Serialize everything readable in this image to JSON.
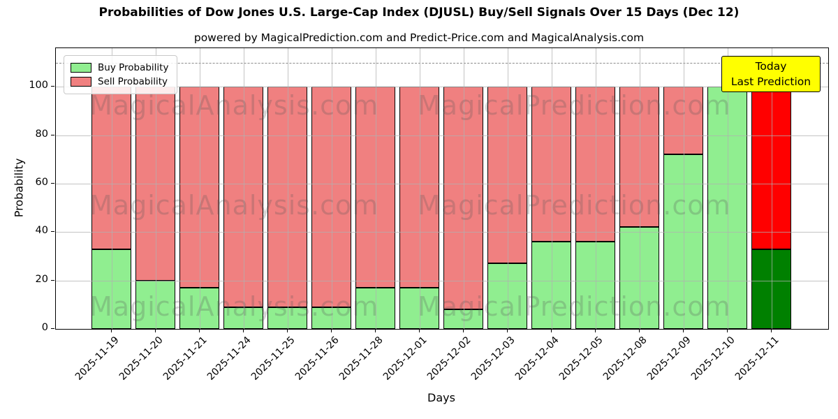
{
  "title": "Probabilities of Dow Jones U.S. Large-Cap Index (DJUSL) Buy/Sell Signals Over 15 Days (Dec 12)",
  "subtitle": "powered by MagicalPrediction.com and Predict-Price.com and MagicalAnalysis.com",
  "legend": {
    "items": [
      {
        "label": "Buy Probability",
        "color": "#90EE90"
      },
      {
        "label": "Sell Probability",
        "color": "#F08080"
      }
    ]
  },
  "annotation": {
    "line1": "Today",
    "line2": "Last Prediction",
    "bg_color": "#FFFF00"
  },
  "watermarks": {
    "left_text": "MagicalAnalysis.com",
    "right_text": "MagicalPrediction.com"
  },
  "colors": {
    "buy": "#90EE90",
    "sell": "#F08080",
    "buy_today": "#008000",
    "sell_today": "#FF0000",
    "grid": "#b0b0b0",
    "annotation_bg": "#FFFF00"
  },
  "chart_data": {
    "type": "bar",
    "stacked": true,
    "title": "Probabilities of Dow Jones U.S. Large-Cap Index (DJUSL) Buy/Sell Signals Over 15 Days (Dec 12)",
    "xlabel": "Days",
    "ylabel": "Probability",
    "categories": [
      "2025-11-19",
      "2025-11-20",
      "2025-11-21",
      "2025-11-24",
      "2025-11-25",
      "2025-11-26",
      "2025-11-28",
      "2025-12-01",
      "2025-12-02",
      "2025-12-03",
      "2025-12-04",
      "2025-12-05",
      "2025-12-08",
      "2025-12-09",
      "2025-12-10",
      "2025-12-11"
    ],
    "series": [
      {
        "name": "Buy Probability",
        "values": [
          33,
          20,
          17,
          9,
          9,
          9,
          17,
          17,
          8,
          27,
          36,
          36,
          42,
          72,
          100,
          33
        ],
        "color": "#90EE90",
        "today_color": "#008000"
      },
      {
        "name": "Sell Probability",
        "values": [
          67,
          80,
          83,
          91,
          91,
          91,
          83,
          83,
          92,
          73,
          64,
          64,
          58,
          28,
          0,
          67
        ],
        "color": "#F08080",
        "today_color": "#FF0000"
      }
    ],
    "yticks": [
      0,
      20,
      40,
      60,
      80,
      100
    ],
    "ylim": [
      0,
      116
    ],
    "dashed_line_y": 110,
    "grid": "both",
    "legend_position": "upper left"
  }
}
